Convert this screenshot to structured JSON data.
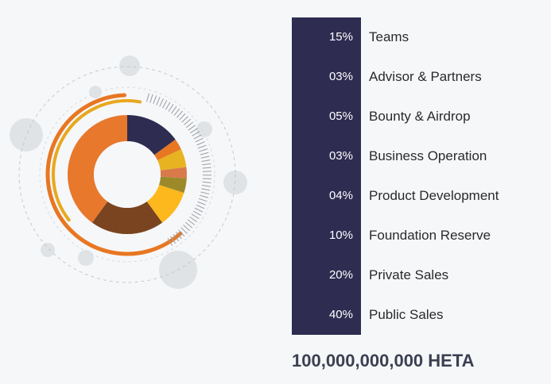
{
  "chart_data": {
    "type": "pie",
    "variant": "donut",
    "categories": [
      "Teams",
      "Advisor & Partners",
      "Bounty & Airdrop",
      "Business Operation",
      "Product Development",
      "Foundation Reserve",
      "Private Sales",
      "Public Sales"
    ],
    "labels": [
      "15%",
      "03%",
      "05%",
      "03%",
      "04%",
      "10%",
      "20%",
      "40%"
    ],
    "values": [
      15,
      3,
      5,
      3,
      4,
      10,
      20,
      40
    ],
    "colors": [
      "#2f2c52",
      "#e87722",
      "#e8b321",
      "#d97a4a",
      "#9c8a2a",
      "#fdb81e",
      "#7a4420",
      "#e8782c"
    ],
    "total": "100,000,000,000 HETA"
  }
}
